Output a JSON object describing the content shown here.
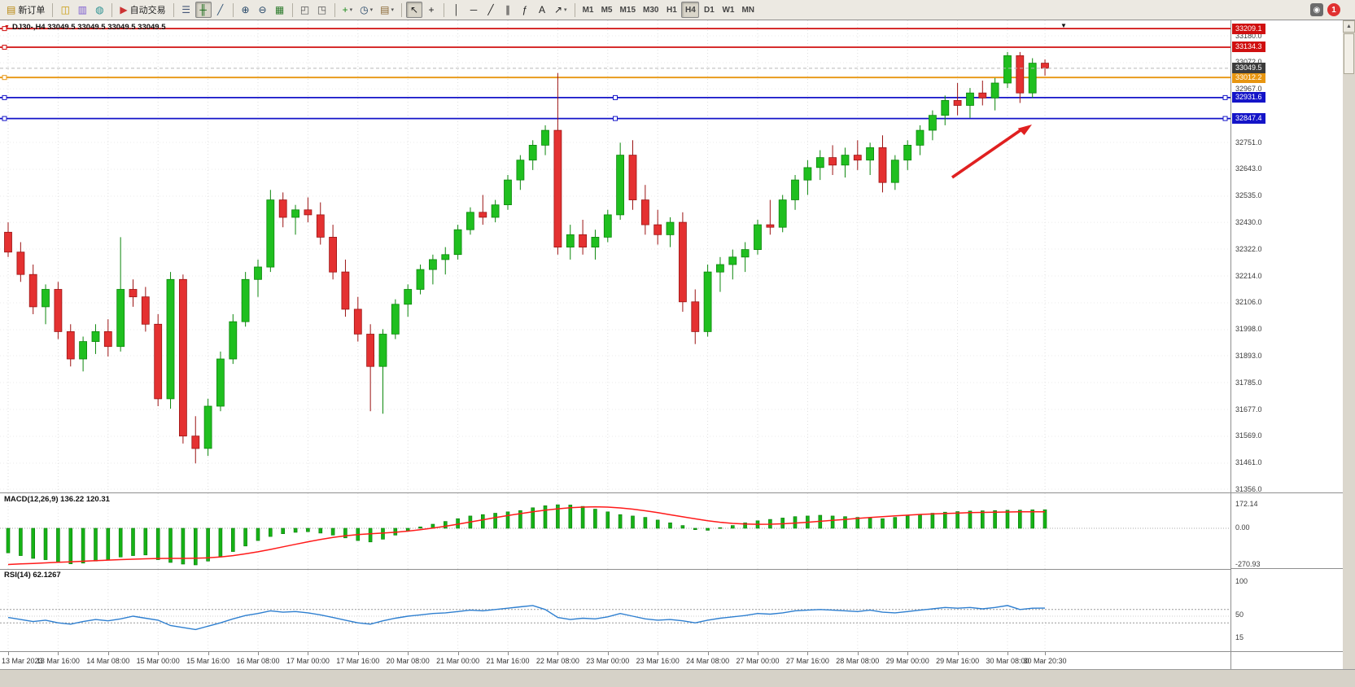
{
  "app": {
    "notification_count": "1"
  },
  "toolbar": {
    "new_order": {
      "label": "新订单",
      "glyph": "▤",
      "color": "#b8860b"
    },
    "system_icons": [
      {
        "name": "market-watch",
        "glyph": "◫",
        "color": "#c89a0a"
      },
      {
        "name": "data-window",
        "glyph": "▥",
        "color": "#7a5ad0"
      },
      {
        "name": "navigator",
        "glyph": "◍",
        "color": "#2a9090"
      }
    ],
    "auto_trading": {
      "label": "自动交易",
      "glyph": "▶",
      "color": "#cc3333"
    },
    "groups": [
      [
        {
          "name": "bar-chart",
          "glyph": "☰",
          "color": "#445577"
        },
        {
          "name": "candlestick-chart",
          "glyph": "╫",
          "color": "#116611",
          "pressed": true
        },
        {
          "name": "line-chart",
          "glyph": "╱",
          "color": "#335577"
        }
      ],
      [
        {
          "name": "zoom-in",
          "glyph": "⊕",
          "color": "#224466"
        },
        {
          "name": "zoom-out",
          "glyph": "⊖",
          "color": "#224466"
        },
        {
          "name": "tile-windows",
          "glyph": "▦",
          "color": "#2a7a2a"
        }
      ],
      [
        {
          "name": "auto-scroll",
          "glyph": "◰",
          "color": "#555555"
        },
        {
          "name": "chart-shift",
          "glyph": "◳",
          "color": "#555555"
        }
      ],
      [
        {
          "name": "add-indicator",
          "glyph": "+",
          "color": "#1a8a1a",
          "dropdown": true
        },
        {
          "name": "period",
          "glyph": "◷",
          "color": "#224466",
          "dropdown": true
        },
        {
          "name": "template",
          "glyph": "▤",
          "color": "#886633",
          "dropdown": true
        }
      ],
      [
        {
          "name": "cursor",
          "glyph": "↖",
          "color": "#222222",
          "pressed": true
        },
        {
          "name": "crosshair",
          "glyph": "+",
          "color": "#222222"
        }
      ],
      [
        {
          "name": "vertical-line",
          "glyph": "│",
          "color": "#222222"
        },
        {
          "name": "horizontal-line",
          "glyph": "─",
          "color": "#222222"
        },
        {
          "name": "trendline",
          "glyph": "╱",
          "color": "#222222"
        },
        {
          "name": "channel",
          "glyph": "∥",
          "color": "#222222"
        },
        {
          "name": "fibonacci",
          "glyph": "ƒ",
          "color": "#222222"
        },
        {
          "name": "text-tool",
          "glyph": "A",
          "color": "#222222"
        },
        {
          "name": "arrows-tool",
          "glyph": "↗",
          "color": "#222222",
          "dropdown": true
        }
      ]
    ],
    "timeframes": [
      {
        "label": "M1"
      },
      {
        "label": "M5"
      },
      {
        "label": "M15"
      },
      {
        "label": "M30"
      },
      {
        "label": "H1"
      },
      {
        "label": "H4",
        "active": true
      },
      {
        "label": "D1"
      },
      {
        "label": "W1"
      },
      {
        "label": "MN"
      }
    ]
  },
  "chart": {
    "title": "DJ30-,H4 33049.5 33049.5 33049.5 33049.5",
    "current": {
      "label": "33049.5",
      "value": 33049.5,
      "bg": "#3c3c3c"
    },
    "price_ticks": [
      {
        "label": "33180.0",
        "value": 33180
      },
      {
        "label": "33072.0",
        "value": 33072
      },
      {
        "label": "32967.0",
        "value": 32967
      },
      {
        "label": "32751.0",
        "value": 32751
      },
      {
        "label": "32643.0",
        "value": 32643
      },
      {
        "label": "32535.0",
        "value": 32535
      },
      {
        "label": "32430.0",
        "value": 32430
      },
      {
        "label": "32322.0",
        "value": 32322
      },
      {
        "label": "32214.0",
        "value": 32214
      },
      {
        "label": "32106.0",
        "value": 32106
      },
      {
        "label": "31998.0",
        "value": 31998
      },
      {
        "label": "31893.0",
        "value": 31893
      },
      {
        "label": "31785.0",
        "value": 31785
      },
      {
        "label": "31677.0",
        "value": 31677
      },
      {
        "label": "31569.0",
        "value": 31569
      },
      {
        "label": "31461.0",
        "value": 31461
      },
      {
        "label": "31356.0",
        "value": 31356
      }
    ],
    "levels": [
      {
        "label": "33209.1",
        "value": 33209.1,
        "color": "#d01010"
      },
      {
        "label": "33134.3",
        "value": 33134.3,
        "color": "#d01010"
      },
      {
        "label": "33012.2",
        "value": 33012.2,
        "color": "#e89611"
      },
      {
        "label": "32931.6",
        "value": 32931.6,
        "color": "#1414c8",
        "handles": true
      },
      {
        "label": "32847.4",
        "value": 32847.4,
        "color": "#1414c8",
        "handles": true
      }
    ],
    "arrow_color": "#e02020"
  },
  "macd": {
    "title": "MACD(12,26,9) 136.22 120.31",
    "ticks": [
      {
        "label": "172.14",
        "value": 172.14
      },
      {
        "label": "0.00",
        "value": 0
      },
      {
        "label": "-270.93",
        "value": -270.93
      }
    ]
  },
  "rsi": {
    "title": "RSI(14) 62.1267",
    "levels": [
      40,
      60
    ],
    "ticks": [
      {
        "label": "100",
        "value": 100
      },
      {
        "label": "50",
        "value": 50
      },
      {
        "label": "15",
        "value": 15
      }
    ]
  },
  "chart_data": {
    "type": "candlestick",
    "symbol": "DJ30-",
    "timeframe": "H4",
    "y_range": [
      31356,
      33240
    ],
    "time_labels": [
      "13 Mar 2023",
      "13 Mar 16:00",
      "14 Mar 08:00",
      "15 Mar 00:00",
      "15 Mar 16:00",
      "16 Mar 08:00",
      "17 Mar 00:00",
      "17 Mar 16:00",
      "20 Mar 08:00",
      "21 Mar 00:00",
      "21 Mar 16:00",
      "22 Mar 08:00",
      "23 Mar 00:00",
      "23 Mar 16:00",
      "24 Mar 08:00",
      "27 Mar 00:00",
      "27 Mar 16:00",
      "28 Mar 08:00",
      "29 Mar 00:00",
      "29 Mar 16:00",
      "30 Mar 08:00",
      "30 Mar 20:30"
    ],
    "candles": [
      [
        32390,
        32430,
        32290,
        32310
      ],
      [
        32310,
        32350,
        32190,
        32220
      ],
      [
        32220,
        32260,
        32060,
        32090
      ],
      [
        32090,
        32180,
        32020,
        32160
      ],
      [
        32160,
        32190,
        31960,
        31990
      ],
      [
        31990,
        32020,
        31850,
        31880
      ],
      [
        31880,
        31970,
        31830,
        31950
      ],
      [
        31950,
        32020,
        31900,
        31990
      ],
      [
        31990,
        32040,
        31890,
        31930
      ],
      [
        31930,
        32370,
        31910,
        32160
      ],
      [
        32160,
        32200,
        32090,
        32130
      ],
      [
        32130,
        32170,
        31990,
        32020
      ],
      [
        32020,
        32060,
        31690,
        31720
      ],
      [
        31720,
        32230,
        31680,
        32200
      ],
      [
        32200,
        32220,
        31540,
        31570
      ],
      [
        31570,
        31650,
        31460,
        31520
      ],
      [
        31520,
        31720,
        31490,
        31690
      ],
      [
        31690,
        31910,
        31670,
        31880
      ],
      [
        31880,
        32060,
        31860,
        32030
      ],
      [
        32030,
        32230,
        32010,
        32200
      ],
      [
        32200,
        32280,
        32130,
        32250
      ],
      [
        32250,
        32560,
        32230,
        32520
      ],
      [
        32520,
        32550,
        32410,
        32450
      ],
      [
        32450,
        32500,
        32380,
        32480
      ],
      [
        32480,
        32530,
        32430,
        32460
      ],
      [
        32460,
        32510,
        32340,
        32370
      ],
      [
        32370,
        32420,
        32200,
        32230
      ],
      [
        32230,
        32280,
        32050,
        32080
      ],
      [
        32080,
        32130,
        31950,
        31980
      ],
      [
        31980,
        32020,
        31670,
        31850
      ],
      [
        31850,
        32000,
        31660,
        31980
      ],
      [
        31980,
        32120,
        31960,
        32100
      ],
      [
        32100,
        32180,
        32050,
        32160
      ],
      [
        32160,
        32260,
        32140,
        32240
      ],
      [
        32240,
        32300,
        32180,
        32280
      ],
      [
        32280,
        32330,
        32220,
        32300
      ],
      [
        32300,
        32420,
        32280,
        32400
      ],
      [
        32400,
        32490,
        32380,
        32470
      ],
      [
        32470,
        32540,
        32420,
        32450
      ],
      [
        32450,
        32520,
        32430,
        32500
      ],
      [
        32500,
        32620,
        32480,
        32600
      ],
      [
        32600,
        32700,
        32560,
        32680
      ],
      [
        32680,
        32760,
        32640,
        32740
      ],
      [
        32740,
        32820,
        32700,
        32800
      ],
      [
        32800,
        33030,
        32300,
        32330
      ],
      [
        32330,
        32420,
        32280,
        32380
      ],
      [
        32380,
        32440,
        32300,
        32330
      ],
      [
        32330,
        32400,
        32280,
        32370
      ],
      [
        32370,
        32480,
        32350,
        32460
      ],
      [
        32460,
        32750,
        32440,
        32700
      ],
      [
        32700,
        32760,
        32480,
        32520
      ],
      [
        32520,
        32580,
        32380,
        32420
      ],
      [
        32420,
        32480,
        32340,
        32380
      ],
      [
        32380,
        32450,
        32330,
        32430
      ],
      [
        32430,
        32470,
        32070,
        32110
      ],
      [
        32110,
        32160,
        31940,
        31990
      ],
      [
        31990,
        32260,
        31970,
        32230
      ],
      [
        32230,
        32290,
        32150,
        32260
      ],
      [
        32260,
        32320,
        32200,
        32290
      ],
      [
        32290,
        32350,
        32230,
        32320
      ],
      [
        32320,
        32440,
        32300,
        32420
      ],
      [
        32420,
        32520,
        32380,
        32410
      ],
      [
        32410,
        32540,
        32390,
        32520
      ],
      [
        32520,
        32620,
        32480,
        32600
      ],
      [
        32600,
        32680,
        32540,
        32650
      ],
      [
        32650,
        32720,
        32600,
        32690
      ],
      [
        32690,
        32740,
        32620,
        32660
      ],
      [
        32660,
        32730,
        32610,
        32700
      ],
      [
        32700,
        32760,
        32640,
        32680
      ],
      [
        32680,
        32750,
        32620,
        32730
      ],
      [
        32730,
        32780,
        32550,
        32590
      ],
      [
        32590,
        32700,
        32560,
        32680
      ],
      [
        32680,
        32760,
        32640,
        32740
      ],
      [
        32740,
        32820,
        32700,
        32800
      ],
      [
        32800,
        32880,
        32760,
        32860
      ],
      [
        32860,
        32940,
        32820,
        32920
      ],
      [
        32920,
        32990,
        32860,
        32900
      ],
      [
        32900,
        32970,
        32850,
        32950
      ],
      [
        32950,
        33000,
        32900,
        32930
      ],
      [
        32930,
        33010,
        32880,
        32990
      ],
      [
        32990,
        33115,
        32970,
        33100
      ],
      [
        33100,
        33115,
        32910,
        32950
      ],
      [
        32950,
        33090,
        32930,
        33070
      ],
      [
        33070,
        33085,
        33020,
        33049.5
      ]
    ],
    "macd_histogram": [
      -180,
      -200,
      -220,
      -230,
      -250,
      -260,
      -255,
      -240,
      -230,
      -210,
      -200,
      -195,
      -230,
      -250,
      -262,
      -268,
      -240,
      -210,
      -170,
      -130,
      -90,
      -60,
      -40,
      -30,
      -25,
      -35,
      -50,
      -70,
      -90,
      -100,
      -80,
      -50,
      -20,
      10,
      30,
      50,
      70,
      90,
      100,
      110,
      120,
      130,
      150,
      165,
      172,
      170,
      160,
      140,
      120,
      100,
      90,
      80,
      60,
      40,
      20,
      -10,
      -15,
      5,
      20,
      40,
      55,
      65,
      75,
      85,
      90,
      95,
      90,
      85,
      80,
      75,
      70,
      80,
      90,
      100,
      110,
      118,
      122,
      126,
      128,
      130,
      132,
      133,
      135,
      136
    ],
    "macd_signal": [
      -265,
      -261,
      -257,
      -253,
      -249,
      -245,
      -241,
      -237,
      -233,
      -229,
      -226,
      -223,
      -221,
      -220,
      -220,
      -219,
      -216,
      -210,
      -200,
      -187,
      -172,
      -155,
      -136,
      -117,
      -99,
      -82,
      -67,
      -55,
      -46,
      -40,
      -35,
      -29,
      -21,
      -11,
      1,
      15,
      30,
      46,
      62,
      78,
      93,
      107,
      120,
      132,
      142,
      150,
      155,
      157,
      155,
      149,
      140,
      128,
      114,
      99,
      84,
      69,
      55,
      44,
      36,
      31,
      29,
      30,
      33,
      38,
      44,
      51,
      58,
      65,
      72,
      79,
      85,
      91,
      96,
      101,
      105,
      108,
      111,
      114,
      116,
      118,
      119,
      120,
      120,
      120
    ],
    "rsi": [
      48,
      45,
      42,
      44,
      40,
      38,
      42,
      45,
      43,
      46,
      50,
      47,
      44,
      36,
      33,
      30,
      35,
      40,
      46,
      51,
      54,
      58,
      56,
      57,
      55,
      52,
      48,
      44,
      40,
      38,
      43,
      47,
      50,
      52,
      54,
      55,
      57,
      59,
      58,
      60,
      62,
      64,
      66,
      60,
      48,
      45,
      47,
      46,
      49,
      54,
      50,
      46,
      44,
      45,
      43,
      40,
      44,
      47,
      49,
      51,
      54,
      53,
      55,
      58,
      59,
      60,
      59,
      58,
      57,
      59,
      56,
      55,
      57,
      59,
      61,
      63,
      62,
      63,
      61,
      63,
      66,
      60,
      62,
      62.13
    ]
  }
}
